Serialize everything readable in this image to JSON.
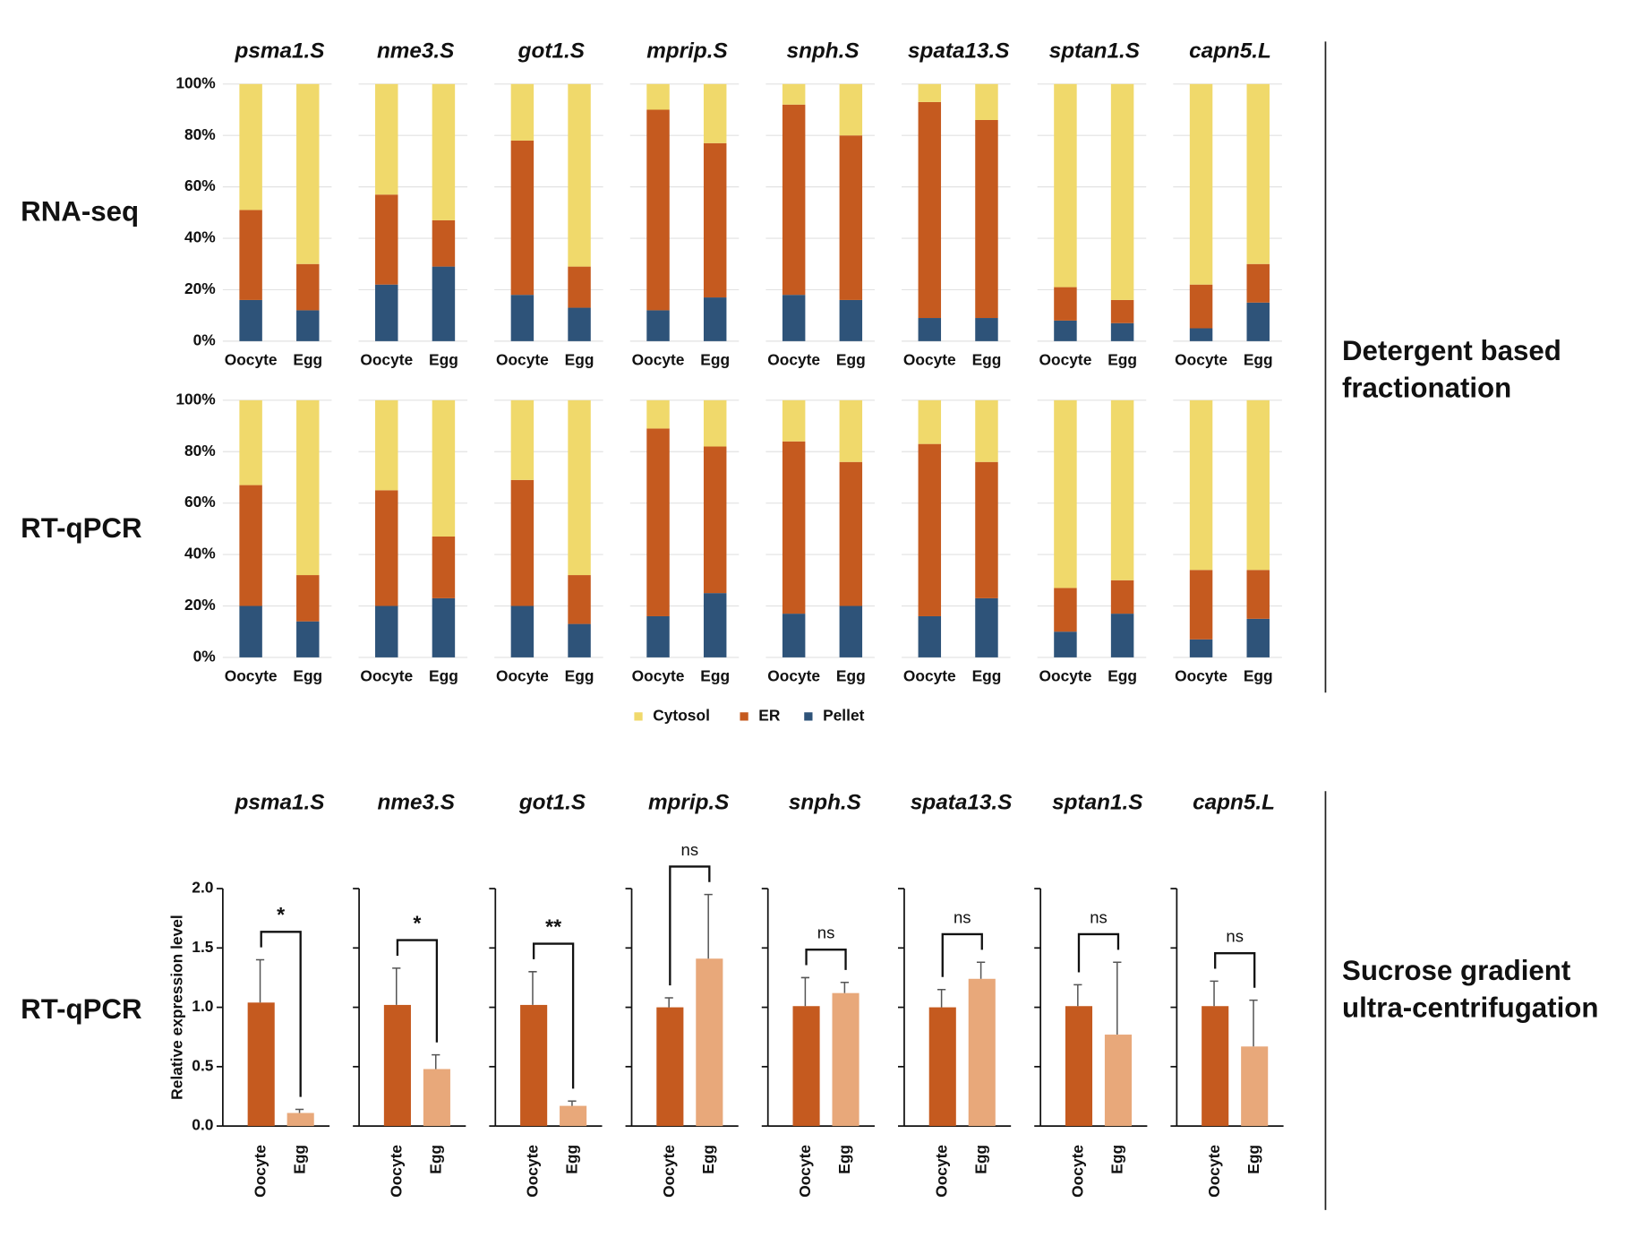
{
  "row_labels": [
    "RNA-seq",
    "RT-qPCR",
    "RT-qPCR"
  ],
  "side_labels": [
    [
      "Detergent based",
      "fractionation"
    ],
    [
      "Sucrose gradient",
      "ultra-centrifugation"
    ]
  ],
  "chart_data": [
    {
      "type": "stacked_bar",
      "title": "psma1.S",
      "categories": [
        "Oocyte",
        "Egg"
      ],
      "legend": "bottom",
      "grid": true,
      "ylim": [
        0,
        100
      ],
      "yticks": [
        {
          "value": 0,
          "label": "0%"
        },
        {
          "value": 20,
          "label": "20%"
        },
        {
          "value": 40,
          "label": "40%"
        },
        {
          "value": 60,
          "label": "60%"
        },
        {
          "value": 80,
          "label": "80%"
        },
        {
          "value": 100,
          "label": "100%"
        }
      ],
      "series": [
        {
          "name": "Cytosol",
          "color": "#f0d96b",
          "values": [
            49,
            70
          ]
        },
        {
          "name": "ER",
          "color": "#c55a1f",
          "values": [
            35,
            18
          ]
        },
        {
          "name": "Pellet",
          "color": "#2e5379",
          "values": [
            16,
            12
          ]
        }
      ]
    },
    {
      "type": "stacked_bar",
      "title": "nme3.S",
      "categories": [
        "Oocyte",
        "Egg"
      ],
      "grid": true,
      "ylim": [
        0,
        100
      ],
      "yticks": [
        0,
        20,
        40,
        60,
        80,
        100
      ],
      "series": [
        {
          "name": "Cytosol",
          "color": "#f0d96b",
          "values": [
            43,
            53
          ]
        },
        {
          "name": "ER",
          "color": "#c55a1f",
          "values": [
            35,
            18
          ]
        },
        {
          "name": "Pellet",
          "color": "#2e5379",
          "values": [
            22,
            29
          ]
        }
      ]
    },
    {
      "type": "stacked_bar",
      "title": "got1.S",
      "categories": [
        "Oocyte",
        "Egg"
      ],
      "grid": true,
      "ylim": [
        0,
        100
      ],
      "yticks": [
        0,
        20,
        40,
        60,
        80,
        100
      ],
      "series": [
        {
          "name": "Cytosol",
          "color": "#f0d96b",
          "values": [
            22,
            71
          ]
        },
        {
          "name": "ER",
          "color": "#c55a1f",
          "values": [
            60,
            16
          ]
        },
        {
          "name": "Pellet",
          "color": "#2e5379",
          "values": [
            18,
            13
          ]
        }
      ]
    },
    {
      "type": "stacked_bar",
      "title": "mprip.S",
      "categories": [
        "Oocyte",
        "Egg"
      ],
      "grid": true,
      "ylim": [
        0,
        100
      ],
      "yticks": [
        0,
        20,
        40,
        60,
        80,
        100
      ],
      "series": [
        {
          "name": "Cytosol",
          "color": "#f0d96b",
          "values": [
            10,
            23
          ]
        },
        {
          "name": "ER",
          "color": "#c55a1f",
          "values": [
            78,
            60
          ]
        },
        {
          "name": "Pellet",
          "color": "#2e5379",
          "values": [
            12,
            17
          ]
        }
      ]
    },
    {
      "type": "stacked_bar",
      "title": "snph.S",
      "categories": [
        "Oocyte",
        "Egg"
      ],
      "grid": true,
      "ylim": [
        0,
        100
      ],
      "yticks": [
        0,
        20,
        40,
        60,
        80,
        100
      ],
      "series": [
        {
          "name": "Cytosol",
          "color": "#f0d96b",
          "values": [
            8,
            20
          ]
        },
        {
          "name": "ER",
          "color": "#c55a1f",
          "values": [
            74,
            64
          ]
        },
        {
          "name": "Pellet",
          "color": "#2e5379",
          "values": [
            18,
            16
          ]
        }
      ]
    },
    {
      "type": "stacked_bar",
      "title": "spata13.S",
      "categories": [
        "Oocyte",
        "Egg"
      ],
      "grid": true,
      "ylim": [
        0,
        100
      ],
      "yticks": [
        0,
        20,
        40,
        60,
        80,
        100
      ],
      "series": [
        {
          "name": "Cytosol",
          "color": "#f0d96b",
          "values": [
            7,
            14
          ]
        },
        {
          "name": "ER",
          "color": "#c55a1f",
          "values": [
            84,
            77
          ]
        },
        {
          "name": "Pellet",
          "color": "#2e5379",
          "values": [
            9,
            9
          ]
        }
      ]
    },
    {
      "type": "stacked_bar",
      "title": "sptan1.S",
      "categories": [
        "Oocyte",
        "Egg"
      ],
      "grid": true,
      "ylim": [
        0,
        100
      ],
      "yticks": [
        0,
        20,
        40,
        60,
        80,
        100
      ],
      "series": [
        {
          "name": "Cytosol",
          "color": "#f0d96b",
          "values": [
            79,
            84
          ]
        },
        {
          "name": "ER",
          "color": "#c55a1f",
          "values": [
            13,
            9
          ]
        },
        {
          "name": "Pellet",
          "color": "#2e5379",
          "values": [
            8,
            7
          ]
        }
      ]
    },
    {
      "type": "stacked_bar",
      "title": "capn5.L",
      "categories": [
        "Oocyte",
        "Egg"
      ],
      "grid": true,
      "ylim": [
        0,
        100
      ],
      "yticks": [
        0,
        20,
        40,
        60,
        80,
        100
      ],
      "series": [
        {
          "name": "Cytosol",
          "color": "#f0d96b",
          "values": [
            78,
            70
          ]
        },
        {
          "name": "ER",
          "color": "#c55a1f",
          "values": [
            17,
            15
          ]
        },
        {
          "name": "Pellet",
          "color": "#2e5379",
          "values": [
            5,
            15
          ]
        }
      ]
    },
    {
      "type": "stacked_bar",
      "categories": [
        "Oocyte",
        "Egg"
      ],
      "grid": true,
      "ylim": [
        0,
        100
      ],
      "yticks": [
        {
          "value": 0,
          "label": "0%"
        },
        {
          "value": 20,
          "label": "20%"
        },
        {
          "value": 40,
          "label": "40%"
        },
        {
          "value": 60,
          "label": "60%"
        },
        {
          "value": 80,
          "label": "80%"
        },
        {
          "value": 100,
          "label": "100%"
        }
      ],
      "series": [
        {
          "name": "Cytosol",
          "color": "#f0d96b",
          "values": [
            33,
            68
          ]
        },
        {
          "name": "ER",
          "color": "#c55a1f",
          "values": [
            47,
            18
          ]
        },
        {
          "name": "Pellet",
          "color": "#2e5379",
          "values": [
            20,
            14
          ]
        }
      ]
    },
    {
      "type": "stacked_bar",
      "categories": [
        "Oocyte",
        "Egg"
      ],
      "grid": true,
      "ylim": [
        0,
        100
      ],
      "yticks": [
        0,
        20,
        40,
        60,
        80,
        100
      ],
      "series": [
        {
          "name": "Cytosol",
          "color": "#f0d96b",
          "values": [
            35,
            53
          ]
        },
        {
          "name": "ER",
          "color": "#c55a1f",
          "values": [
            45,
            24
          ]
        },
        {
          "name": "Pellet",
          "color": "#2e5379",
          "values": [
            20,
            23
          ]
        }
      ]
    },
    {
      "type": "stacked_bar",
      "categories": [
        "Oocyte",
        "Egg"
      ],
      "grid": true,
      "ylim": [
        0,
        100
      ],
      "yticks": [
        0,
        20,
        40,
        60,
        80,
        100
      ],
      "series": [
        {
          "name": "Cytosol",
          "color": "#f0d96b",
          "values": [
            31,
            68
          ]
        },
        {
          "name": "ER",
          "color": "#c55a1f",
          "values": [
            49,
            19
          ]
        },
        {
          "name": "Pellet",
          "color": "#2e5379",
          "values": [
            20,
            13
          ]
        }
      ]
    },
    {
      "type": "stacked_bar",
      "categories": [
        "Oocyte",
        "Egg"
      ],
      "grid": true,
      "ylim": [
        0,
        100
      ],
      "yticks": [
        0,
        20,
        40,
        60,
        80,
        100
      ],
      "series": [
        {
          "name": "Cytosol",
          "color": "#f0d96b",
          "values": [
            11,
            18
          ]
        },
        {
          "name": "ER",
          "color": "#c55a1f",
          "values": [
            73,
            57
          ]
        },
        {
          "name": "Pellet",
          "color": "#2e5379",
          "values": [
            16,
            25
          ]
        }
      ]
    },
    {
      "type": "stacked_bar",
      "categories": [
        "Oocyte",
        "Egg"
      ],
      "grid": true,
      "ylim": [
        0,
        100
      ],
      "yticks": [
        0,
        20,
        40,
        60,
        80,
        100
      ],
      "series": [
        {
          "name": "Cytosol",
          "color": "#f0d96b",
          "values": [
            16,
            24
          ]
        },
        {
          "name": "ER",
          "color": "#c55a1f",
          "values": [
            67,
            56
          ]
        },
        {
          "name": "Pellet",
          "color": "#2e5379",
          "values": [
            17,
            20
          ]
        }
      ]
    },
    {
      "type": "stacked_bar",
      "categories": [
        "Oocyte",
        "Egg"
      ],
      "grid": true,
      "ylim": [
        0,
        100
      ],
      "yticks": [
        0,
        20,
        40,
        60,
        80,
        100
      ],
      "series": [
        {
          "name": "Cytosol",
          "color": "#f0d96b",
          "values": [
            17,
            24
          ]
        },
        {
          "name": "ER",
          "color": "#c55a1f",
          "values": [
            67,
            53
          ]
        },
        {
          "name": "Pellet",
          "color": "#2e5379",
          "values": [
            16,
            23
          ]
        }
      ]
    },
    {
      "type": "stacked_bar",
      "categories": [
        "Oocyte",
        "Egg"
      ],
      "grid": true,
      "ylim": [
        0,
        100
      ],
      "yticks": [
        0,
        20,
        40,
        60,
        80,
        100
      ],
      "series": [
        {
          "name": "Cytosol",
          "color": "#f0d96b",
          "values": [
            73,
            70
          ]
        },
        {
          "name": "ER",
          "color": "#c55a1f",
          "values": [
            17,
            13
          ]
        },
        {
          "name": "Pellet",
          "color": "#2e5379",
          "values": [
            10,
            17
          ]
        }
      ]
    },
    {
      "type": "stacked_bar",
      "categories": [
        "Oocyte",
        "Egg"
      ],
      "grid": true,
      "ylim": [
        0,
        100
      ],
      "yticks": [
        0,
        20,
        40,
        60,
        80,
        100
      ],
      "series": [
        {
          "name": "Cytosol",
          "color": "#f0d96b",
          "values": [
            66,
            66
          ]
        },
        {
          "name": "ER",
          "color": "#c55a1f",
          "values": [
            27,
            19
          ]
        },
        {
          "name": "Pellet",
          "color": "#2e5379",
          "values": [
            7,
            15
          ]
        }
      ]
    },
    {
      "type": "bar",
      "title": "psma1.S",
      "ylabel": "Relative expression level",
      "categories": [
        "Oocyte",
        "Egg"
      ],
      "values": [
        1.04,
        0.11
      ],
      "errors": [
        0.36,
        0.03
      ],
      "colors": [
        "#c55a1f",
        "#e8a87a"
      ],
      "significance": "*",
      "ylim": [
        0,
        2
      ],
      "yticks": [
        {
          "value": 0,
          "label": "0.0"
        },
        {
          "value": 0.5,
          "label": "0.5"
        },
        {
          "value": 1,
          "label": "1.0"
        },
        {
          "value": 1.5,
          "label": "1.5"
        },
        {
          "value": 2,
          "label": "2.0"
        }
      ]
    },
    {
      "type": "bar",
      "title": "nme3.S",
      "categories": [
        "Oocyte",
        "Egg"
      ],
      "values": [
        1.02,
        0.48
      ],
      "errors": [
        0.31,
        0.12
      ],
      "colors": [
        "#c55a1f",
        "#e8a87a"
      ],
      "significance": "*",
      "ylim": [
        0,
        2
      ],
      "yticks": [
        0,
        0.5,
        1,
        1.5,
        2
      ]
    },
    {
      "type": "bar",
      "title": "got1.S",
      "categories": [
        "Oocyte",
        "Egg"
      ],
      "values": [
        1.02,
        0.17
      ],
      "errors": [
        0.28,
        0.04
      ],
      "colors": [
        "#c55a1f",
        "#e8a87a"
      ],
      "significance": "**",
      "ylim": [
        0,
        2
      ],
      "yticks": [
        0,
        0.5,
        1,
        1.5,
        2
      ]
    },
    {
      "type": "bar",
      "title": "mprip.S",
      "categories": [
        "Oocyte",
        "Egg"
      ],
      "values": [
        1.0,
        1.41
      ],
      "errors": [
        0.08,
        0.54
      ],
      "colors": [
        "#c55a1f",
        "#e8a87a"
      ],
      "significance": "ns",
      "ylim": [
        0,
        2
      ],
      "yticks": [
        0,
        0.5,
        1,
        1.5,
        2
      ]
    },
    {
      "type": "bar",
      "title": "snph.S",
      "categories": [
        "Oocyte",
        "Egg"
      ],
      "values": [
        1.01,
        1.12
      ],
      "errors": [
        0.24,
        0.09
      ],
      "colors": [
        "#c55a1f",
        "#e8a87a"
      ],
      "significance": "ns",
      "ylim": [
        0,
        2
      ],
      "yticks": [
        0,
        0.5,
        1,
        1.5,
        2
      ]
    },
    {
      "type": "bar",
      "title": "spata13.S",
      "categories": [
        "Oocyte",
        "Egg"
      ],
      "values": [
        1.0,
        1.24
      ],
      "errors": [
        0.15,
        0.14
      ],
      "colors": [
        "#c55a1f",
        "#e8a87a"
      ],
      "significance": "ns",
      "ylim": [
        0,
        2
      ],
      "yticks": [
        0,
        0.5,
        1,
        1.5,
        2
      ]
    },
    {
      "type": "bar",
      "title": "sptan1.S",
      "categories": [
        "Oocyte",
        "Egg"
      ],
      "values": [
        1.01,
        0.77
      ],
      "errors": [
        0.18,
        0.61
      ],
      "colors": [
        "#c55a1f",
        "#e8a87a"
      ],
      "significance": "ns",
      "ylim": [
        0,
        2
      ],
      "yticks": [
        0,
        0.5,
        1,
        1.5,
        2
      ]
    },
    {
      "type": "bar",
      "title": "capn5.L",
      "categories": [
        "Oocyte",
        "Egg"
      ],
      "values": [
        1.01,
        0.67
      ],
      "errors": [
        0.21,
        0.39
      ],
      "colors": [
        "#c55a1f",
        "#e8a87a"
      ],
      "significance": "ns",
      "ylim": [
        0,
        2
      ],
      "yticks": [
        0,
        0.5,
        1,
        1.5,
        2
      ]
    }
  ]
}
